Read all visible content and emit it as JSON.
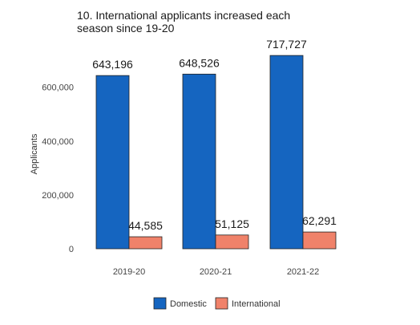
{
  "chart_data": {
    "type": "bar",
    "title": "10. International applicants increased each season since 19-20",
    "xlabel": "",
    "ylabel": "Applicants",
    "categories": [
      "2019-20",
      "2020-21",
      "2021-22"
    ],
    "series": [
      {
        "name": "Domestic",
        "values": [
          643196,
          648526,
          717727
        ],
        "labels": [
          "643,196",
          "648,526",
          "717,727"
        ],
        "color": "#1565c0"
      },
      {
        "name": "International",
        "values": [
          44585,
          51125,
          62291
        ],
        "labels": [
          "44,585",
          "51,125",
          "62,291"
        ],
        "color": "#f0826a"
      }
    ],
    "ylim": [
      0,
      730000
    ],
    "yticks": [
      0,
      200000,
      400000,
      600000
    ],
    "ytick_labels": [
      "0",
      "200,000",
      "400,000",
      "600,000"
    ],
    "grid": false,
    "legend_position": "bottom"
  }
}
